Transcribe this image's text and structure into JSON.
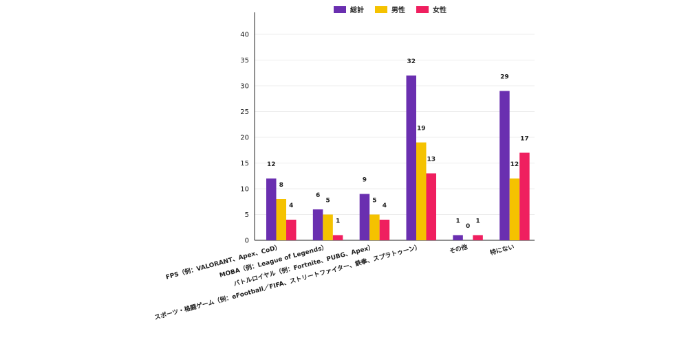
{
  "chart_data": {
    "type": "bar",
    "categories": [
      "FPS（例：VALORANT、Apex、CoD）",
      "MOBA（例：League of Legends）",
      "バトルロイヤル（例：Fortnite、PUBG、Apex）",
      "スポーツ・格闘ゲーム（例：eFootball／FIFA、ストリートファイター、鉄拳、スプラトゥーン）",
      "その他",
      "特にない"
    ],
    "series": [
      {
        "name": "総計",
        "color": "#6a2fb0",
        "values": [
          12,
          6,
          9,
          32,
          1,
          29
        ]
      },
      {
        "name": "男性",
        "color": "#f5c200",
        "values": [
          8,
          5,
          5,
          19,
          0,
          12
        ]
      },
      {
        "name": "女性",
        "color": "#ef1f5f",
        "values": [
          4,
          1,
          4,
          13,
          1,
          17
        ]
      }
    ],
    "y_ticks": [
      "0",
      "5",
      "10",
      "15",
      "20",
      "25",
      "30",
      "35",
      "40"
    ],
    "ylim": [
      0,
      44
    ],
    "grid": true,
    "legend_position": "top-center"
  }
}
